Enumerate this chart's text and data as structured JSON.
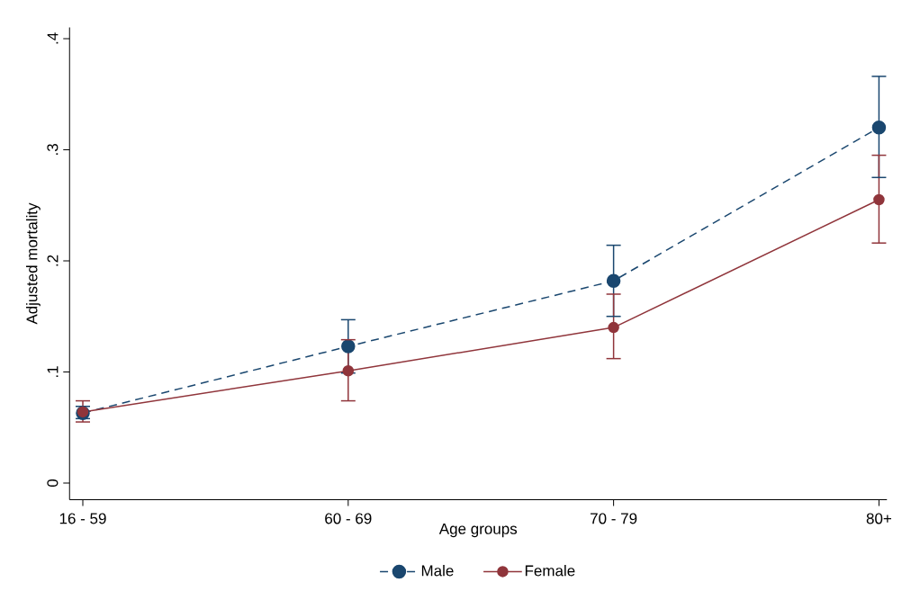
{
  "chart_data": {
    "type": "line",
    "xlabel": "Age groups",
    "ylabel": "Adjusted mortality",
    "categories": [
      "16 - 59",
      "60 - 69",
      "70 -  79",
      "80+"
    ],
    "series": [
      {
        "name": "Male",
        "color": "#1a476f",
        "line_style": "dashed",
        "values": [
          0.063,
          0.123,
          0.182,
          0.32
        ],
        "errors": [
          [
            0.058,
            0.069
          ],
          [
            0.099,
            0.147
          ],
          [
            0.15,
            0.214
          ],
          [
            0.275,
            0.366
          ]
        ]
      },
      {
        "name": "Female",
        "color": "#90353b",
        "line_style": "solid",
        "values": [
          0.064,
          0.101,
          0.14,
          0.255
        ],
        "errors": [
          [
            0.055,
            0.074
          ],
          [
            0.074,
            0.129
          ],
          [
            0.112,
            0.17
          ],
          [
            0.216,
            0.295
          ]
        ]
      }
    ],
    "ylim": [
      -0.015,
      0.41
    ],
    "yticks": [
      0,
      {
        "value": 0.1,
        "label": ".1"
      },
      {
        "value": 0.2,
        "label": ".2"
      },
      {
        "value": 0.3,
        "label": ".3"
      },
      {
        "value": 0.4,
        "label": ".4"
      }
    ],
    "marker": "circle",
    "grid": false,
    "legend": "bottom"
  }
}
